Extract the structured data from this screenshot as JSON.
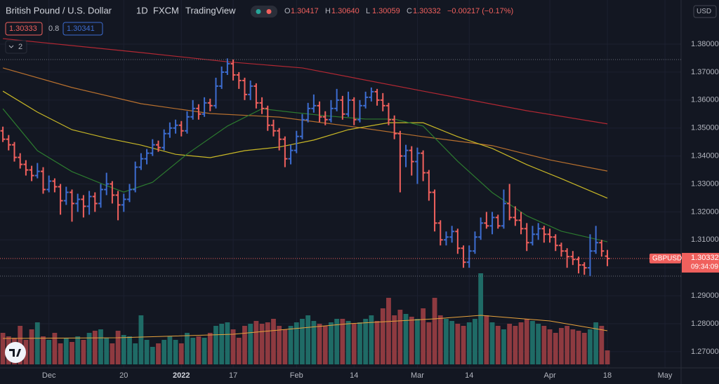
{
  "chart_data": {
    "type": "ohlc",
    "header": {
      "title": "British Pound / U.S. Dollar",
      "interval": "1D",
      "exchange": "FXCM",
      "source": "TradingView"
    },
    "ohlc_header": [
      {
        "key": "O",
        "value": "1.30417"
      },
      {
        "key": "H",
        "value": "1.30640"
      },
      {
        "key": "L",
        "value": "1.30059"
      },
      {
        "key": "C",
        "value": "1.30332"
      }
    ],
    "change": "−0.00217 (−0.17%)",
    "bid": "1.30333",
    "spread": "0.8",
    "ask": "1.30341",
    "indicators_count": "2",
    "currency": "USD",
    "symbol": "GBPUSD",
    "last_price_label": "1.30332",
    "countdown": "09:34:09",
    "up_color": "#3d6dd1",
    "down_color": "#f0605d",
    "volume_up_color": "#1f6b66",
    "volume_down_color": "#8e3a40",
    "xlim": [
      -0.5,
      117.8
    ],
    "xticks": [
      {
        "value": 8,
        "label": "Dec"
      },
      {
        "value": 21,
        "label": "20"
      },
      {
        "value": 31,
        "label": "2022"
      },
      {
        "value": 40,
        "label": "17"
      },
      {
        "value": 51,
        "label": "Feb"
      },
      {
        "value": 61,
        "label": "14"
      },
      {
        "value": 72,
        "label": "Mar"
      },
      {
        "value": 81,
        "label": "14"
      },
      {
        "value": 95,
        "label": "Apr"
      },
      {
        "value": 105,
        "label": "18"
      },
      {
        "value": 115,
        "label": "May"
      }
    ],
    "ylim": [
      1.2642,
      1.3958
    ],
    "yticks": [
      {
        "value": 1.27,
        "label": "1.27000"
      },
      {
        "value": 1.28,
        "label": "1.28000"
      },
      {
        "value": 1.29,
        "label": "1.29000"
      },
      {
        "value": 1.3,
        "label": "1.30000"
      },
      {
        "value": 1.31,
        "label": "1.31000"
      },
      {
        "value": 1.32,
        "label": "1.32000"
      },
      {
        "value": 1.33,
        "label": "1.33000"
      },
      {
        "value": 1.34,
        "label": "1.34000"
      },
      {
        "value": 1.35,
        "label": "1.35000"
      },
      {
        "value": 1.36,
        "label": "1.36000"
      },
      {
        "value": 1.37,
        "label": "1.37000"
      },
      {
        "value": 1.38,
        "label": "1.38000"
      }
    ],
    "grid": true,
    "ohlc": [
      [
        1.349,
        1.3505,
        1.345,
        1.346
      ],
      [
        1.346,
        1.3475,
        1.342,
        1.344
      ],
      [
        1.344,
        1.345,
        1.338,
        1.3395
      ],
      [
        1.3395,
        1.341,
        1.3355,
        1.337
      ],
      [
        1.337,
        1.3385,
        1.333,
        1.335
      ],
      [
        1.335,
        1.3365,
        1.331,
        1.333
      ],
      [
        1.333,
        1.3375,
        1.332,
        1.3345
      ],
      [
        1.3345,
        1.336,
        1.3265,
        1.328
      ],
      [
        1.328,
        1.333,
        1.327,
        1.331
      ],
      [
        1.331,
        1.332,
        1.327,
        1.329
      ],
      [
        1.329,
        1.33,
        1.319,
        1.324
      ],
      [
        1.324,
        1.329,
        1.3225,
        1.327
      ],
      [
        1.327,
        1.328,
        1.3165,
        1.323
      ],
      [
        1.323,
        1.3265,
        1.32,
        1.3245
      ],
      [
        1.3245,
        1.326,
        1.318,
        1.322
      ],
      [
        1.322,
        1.3275,
        1.319,
        1.3255
      ],
      [
        1.3255,
        1.327,
        1.32,
        1.323
      ],
      [
        1.323,
        1.33,
        1.3215,
        1.328
      ],
      [
        1.328,
        1.334,
        1.326,
        1.33
      ],
      [
        1.33,
        1.331,
        1.323,
        1.326
      ],
      [
        1.326,
        1.3275,
        1.317,
        1.3225
      ],
      [
        1.3225,
        1.3265,
        1.32,
        1.3245
      ],
      [
        1.3245,
        1.33,
        1.3235,
        1.328
      ],
      [
        1.328,
        1.338,
        1.327,
        1.336
      ],
      [
        1.336,
        1.341,
        1.335,
        1.339
      ],
      [
        1.339,
        1.3425,
        1.337,
        1.341
      ],
      [
        1.341,
        1.346,
        1.34,
        1.344
      ],
      [
        1.344,
        1.3455,
        1.3415,
        1.343
      ],
      [
        1.343,
        1.3495,
        1.342,
        1.348
      ],
      [
        1.348,
        1.352,
        1.3465,
        1.35
      ],
      [
        1.35,
        1.353,
        1.348,
        1.351
      ],
      [
        1.351,
        1.3525,
        1.347,
        1.349
      ],
      [
        1.349,
        1.356,
        1.348,
        1.354
      ],
      [
        1.354,
        1.36,
        1.353,
        1.357
      ],
      [
        1.357,
        1.3585,
        1.353,
        1.355
      ],
      [
        1.355,
        1.361,
        1.354,
        1.359
      ],
      [
        1.359,
        1.3605,
        1.356,
        1.358
      ],
      [
        1.358,
        1.368,
        1.357,
        1.365
      ],
      [
        1.365,
        1.372,
        1.364,
        1.37
      ],
      [
        1.37,
        1.3749,
        1.369,
        1.373
      ],
      [
        1.373,
        1.3745,
        1.367,
        1.369
      ],
      [
        1.369,
        1.37,
        1.364,
        1.367
      ],
      [
        1.367,
        1.368,
        1.36,
        1.362
      ],
      [
        1.362,
        1.367,
        1.36,
        1.365
      ],
      [
        1.365,
        1.366,
        1.357,
        1.359
      ],
      [
        1.359,
        1.361,
        1.355,
        1.357
      ],
      [
        1.357,
        1.358,
        1.349,
        1.351
      ],
      [
        1.351,
        1.353,
        1.347,
        1.349
      ],
      [
        1.349,
        1.35,
        1.342,
        1.346
      ],
      [
        1.346,
        1.347,
        1.336,
        1.339
      ],
      [
        1.339,
        1.344,
        1.337,
        1.342
      ],
      [
        1.342,
        1.349,
        1.341,
        1.347
      ],
      [
        1.347,
        1.355,
        1.346,
        1.353
      ],
      [
        1.353,
        1.359,
        1.352,
        1.357
      ],
      [
        1.357,
        1.362,
        1.3555,
        1.358
      ],
      [
        1.358,
        1.3595,
        1.352,
        1.354
      ],
      [
        1.354,
        1.356,
        1.351,
        1.353
      ],
      [
        1.353,
        1.36,
        1.352,
        1.357
      ],
      [
        1.357,
        1.364,
        1.356,
        1.36
      ],
      [
        1.36,
        1.3615,
        1.353,
        1.355
      ],
      [
        1.355,
        1.363,
        1.354,
        1.36
      ],
      [
        1.36,
        1.361,
        1.351,
        1.353
      ],
      [
        1.353,
        1.36,
        1.352,
        1.358
      ],
      [
        1.358,
        1.363,
        1.357,
        1.361
      ],
      [
        1.361,
        1.3645,
        1.3595,
        1.363
      ],
      [
        1.363,
        1.364,
        1.358,
        1.36
      ],
      [
        1.36,
        1.3625,
        1.356,
        1.358
      ],
      [
        1.358,
        1.359,
        1.351,
        1.353
      ],
      [
        1.353,
        1.3545,
        1.346,
        1.348
      ],
      [
        1.348,
        1.349,
        1.327,
        1.34
      ],
      [
        1.34,
        1.344,
        1.336,
        1.342
      ],
      [
        1.342,
        1.3435,
        1.333,
        1.338
      ],
      [
        1.338,
        1.343,
        1.33,
        1.341
      ],
      [
        1.341,
        1.342,
        1.331,
        1.334
      ],
      [
        1.334,
        1.335,
        1.324,
        1.327
      ],
      [
        1.327,
        1.328,
        1.313,
        1.316
      ],
      [
        1.316,
        1.317,
        1.308,
        1.31
      ],
      [
        1.31,
        1.313,
        1.308,
        1.311
      ],
      [
        1.311,
        1.315,
        1.309,
        1.313
      ],
      [
        1.313,
        1.314,
        1.305,
        1.307
      ],
      [
        1.307,
        1.308,
        1.3,
        1.302
      ],
      [
        1.302,
        1.308,
        1.3,
        1.306
      ],
      [
        1.306,
        1.313,
        1.305,
        1.311
      ],
      [
        1.311,
        1.318,
        1.31,
        1.316
      ],
      [
        1.316,
        1.32,
        1.314,
        1.315
      ],
      [
        1.315,
        1.32,
        1.312,
        1.318
      ],
      [
        1.318,
        1.319,
        1.314,
        1.315
      ],
      [
        1.315,
        1.328,
        1.314,
        1.323
      ],
      [
        1.323,
        1.33,
        1.317,
        1.318
      ],
      [
        1.318,
        1.322,
        1.315,
        1.317
      ],
      [
        1.317,
        1.32,
        1.312,
        1.314
      ],
      [
        1.314,
        1.316,
        1.306,
        1.309
      ],
      [
        1.309,
        1.315,
        1.308,
        1.312
      ],
      [
        1.312,
        1.316,
        1.31,
        1.314
      ],
      [
        1.314,
        1.315,
        1.309,
        1.312
      ],
      [
        1.312,
        1.314,
        1.309,
        1.311
      ],
      [
        1.311,
        1.312,
        1.306,
        1.308
      ],
      [
        1.308,
        1.309,
        1.304,
        1.306
      ],
      [
        1.306,
        1.307,
        1.3,
        1.304
      ],
      [
        1.304,
        1.306,
        1.301,
        1.303
      ],
      [
        1.303,
        1.304,
        1.298,
        1.301
      ],
      [
        1.301,
        1.302,
        1.2975,
        1.3
      ],
      [
        1.3,
        1.312,
        1.297,
        1.306
      ],
      [
        1.306,
        1.315,
        1.305,
        1.309
      ],
      [
        1.309,
        1.31,
        1.304,
        1.306
      ],
      [
        1.30417,
        1.3064,
        1.30059,
        1.30332
      ]
    ],
    "volume": [
      45,
      40,
      38,
      55,
      35,
      50,
      60,
      40,
      35,
      45,
      30,
      38,
      32,
      40,
      35,
      45,
      48,
      50,
      38,
      30,
      48,
      42,
      40,
      30,
      70,
      35,
      25,
      30,
      35,
      40,
      35,
      30,
      45,
      38,
      40,
      38,
      45,
      55,
      58,
      60,
      50,
      38,
      55,
      58,
      62,
      58,
      60,
      65,
      55,
      50,
      55,
      60,
      65,
      70,
      62,
      58,
      55,
      60,
      65,
      65,
      62,
      58,
      60,
      65,
      70,
      62,
      80,
      95,
      70,
      78,
      72,
      68,
      65,
      80,
      60,
      95,
      70,
      65,
      62,
      58,
      55,
      60,
      65,
      130,
      70,
      60,
      55,
      50,
      58,
      55,
      60,
      65,
      62,
      58,
      55,
      50,
      45,
      52,
      55,
      50,
      48,
      45,
      50,
      60,
      55,
      20
    ],
    "volume_ma": {
      "color": "#e8a33d",
      "x": [
        0,
        20,
        40,
        60,
        75,
        83,
        95,
        105
      ],
      "values": [
        37,
        38,
        43,
        58,
        65,
        70,
        62,
        48
      ]
    },
    "series": [
      {
        "color": "#b22833",
        "x": [
          0,
          24,
          39,
          52,
          73,
          91,
          105
        ],
        "values": [
          1.382,
          1.377,
          1.3737,
          1.3715,
          1.3632,
          1.3562,
          1.3515
        ]
      },
      {
        "color": "#b8702e",
        "x": [
          0,
          12,
          24,
          36,
          48,
          60,
          73,
          85,
          95,
          105
        ],
        "values": [
          1.3715,
          1.3645,
          1.3587,
          1.3552,
          1.3539,
          1.3507,
          1.3469,
          1.3437,
          1.3386,
          1.3346
        ]
      },
      {
        "color": "#c9b826",
        "x": [
          0,
          6,
          12,
          18,
          24,
          30,
          36,
          42,
          48,
          54,
          60,
          67,
          73,
          79,
          85,
          91,
          97,
          105
        ],
        "values": [
          1.3632,
          1.3557,
          1.3494,
          1.3464,
          1.3439,
          1.3406,
          1.3394,
          1.3419,
          1.3432,
          1.3457,
          1.3494,
          1.3519,
          1.3519,
          1.3469,
          1.3427,
          1.3369,
          1.3319,
          1.3249
        ]
      },
      {
        "color": "#2c7a2f",
        "x": [
          0,
          6,
          12,
          18,
          21,
          26,
          32,
          39,
          45,
          50,
          56,
          63,
          68,
          73,
          79,
          85,
          91,
          97,
          105
        ],
        "values": [
          1.3569,
          1.3419,
          1.3344,
          1.3294,
          1.3271,
          1.3306,
          1.3407,
          1.3507,
          1.3569,
          1.3557,
          1.3544,
          1.3532,
          1.3532,
          1.3507,
          1.3381,
          1.3269,
          1.3186,
          1.3131,
          1.3093
        ]
      }
    ]
  }
}
